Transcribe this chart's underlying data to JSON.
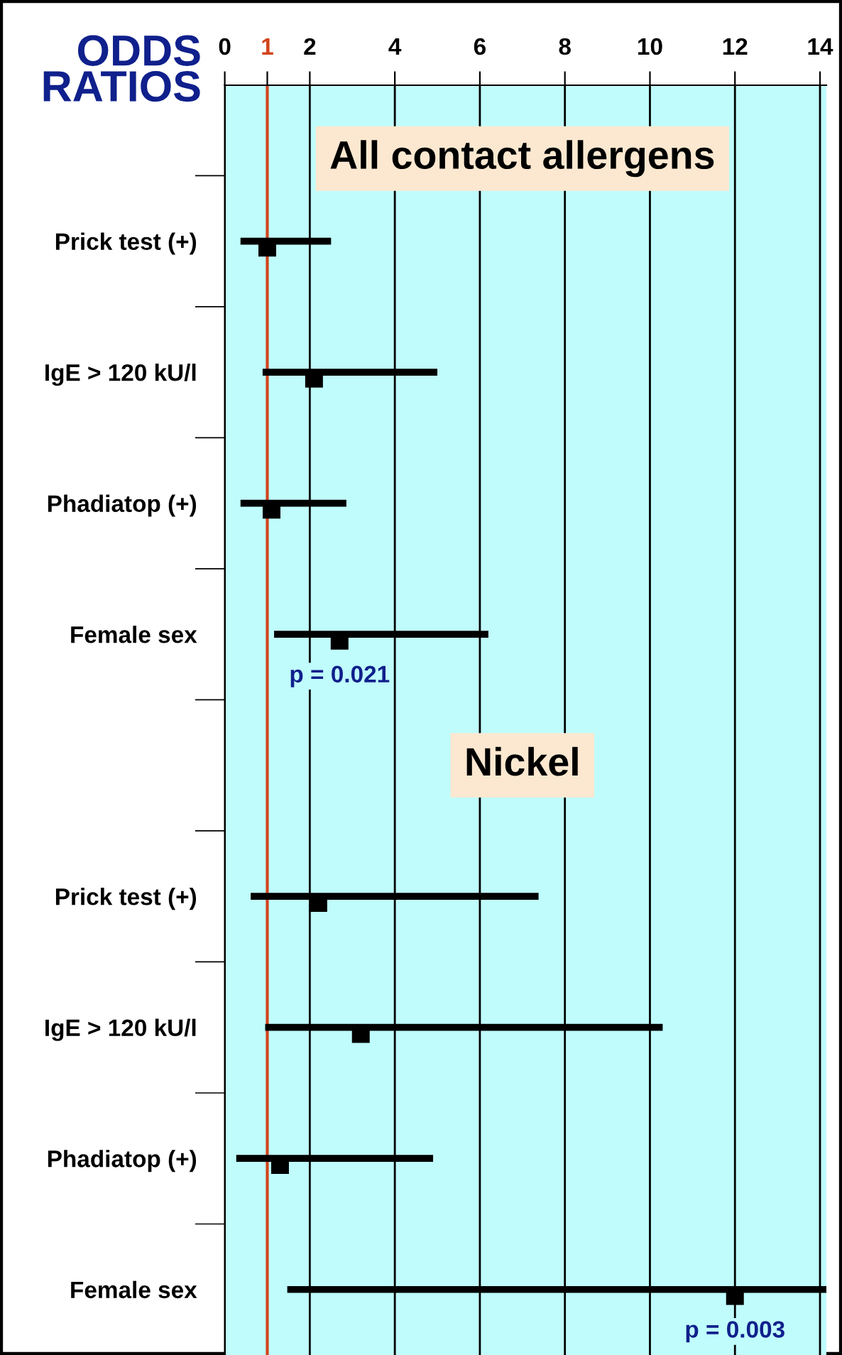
{
  "chart_data": {
    "type": "scatter",
    "orientation": "horizontal",
    "title": "ODDS\nRATIOS",
    "categories": [
      "Prick test (+)",
      "IgE > 120 kU/l",
      "Phadiatop (+)",
      "Female sex",
      null,
      "Prick test (+)",
      "IgE > 120 kU/l",
      "Phadiatop (+)",
      "Female sex"
    ],
    "series": [
      {
        "color": "#000000",
        "values": [
          1.0,
          2.1,
          1.1,
          2.7,
          null,
          2.2,
          3.2,
          1.3,
          12.0
        ],
        "errors": [
          [
            0.37,
            2.5
          ],
          [
            0.89,
            5.0
          ],
          [
            0.37,
            2.86
          ],
          [
            1.16,
            6.2
          ],
          null,
          [
            0.61,
            7.38
          ],
          [
            0.95,
            10.3
          ],
          [
            0.27,
            4.9
          ],
          [
            1.47,
            14.15
          ]
        ]
      }
    ],
    "xlim": [
      0,
      14.15
    ],
    "xticks": [
      0,
      1,
      2,
      4,
      6,
      8,
      10,
      12,
      14
    ],
    "ref_lines": [
      {
        "axis": "x",
        "value": 1,
        "color": "#d2441c"
      }
    ],
    "annotations": [
      "All contact allergens",
      "Nickel",
      "p = 0.021",
      "p = 0.003"
    ],
    "grid": "x",
    "legend": false,
    "marker": "square"
  }
}
